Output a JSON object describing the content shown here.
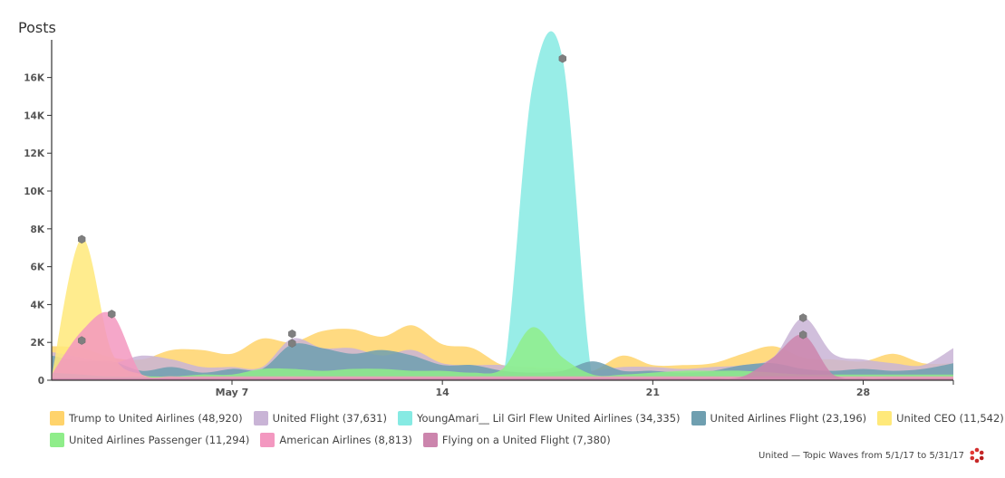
{
  "chart_data": {
    "type": "area",
    "ylabel": "Posts",
    "y_tick_labels": [
      "0",
      "2K",
      "4K",
      "6K",
      "8K",
      "10K",
      "12K",
      "14K",
      "16K"
    ],
    "y_ticks": [
      0,
      2000,
      4000,
      6000,
      8000,
      10000,
      12000,
      14000,
      16000
    ],
    "ylim": [
      0,
      17800
    ],
    "x_tick_labels": [
      "May 7",
      "14",
      "21",
      "28"
    ],
    "x_ticks": [
      "2017-05-07",
      "2017-05-14",
      "2017-05-21",
      "2017-05-28"
    ],
    "x": [
      "2017-05-01",
      "2017-05-02",
      "2017-05-03",
      "2017-05-04",
      "2017-05-05",
      "2017-05-06",
      "2017-05-07",
      "2017-05-08",
      "2017-05-09",
      "2017-05-10",
      "2017-05-11",
      "2017-05-12",
      "2017-05-13",
      "2017-05-14",
      "2017-05-15",
      "2017-05-16",
      "2017-05-17",
      "2017-05-18",
      "2017-05-19",
      "2017-05-20",
      "2017-05-21",
      "2017-05-22",
      "2017-05-23",
      "2017-05-24",
      "2017-05-25",
      "2017-05-26",
      "2017-05-27",
      "2017-05-28",
      "2017-05-29",
      "2017-05-30",
      "2017-05-31"
    ],
    "grid": false,
    "legend_position": "bottom",
    "series": [
      {
        "name": "Trump to United Airlines",
        "count": "48,920",
        "color": "#FFD36B",
        "values": [
          1800,
          1700,
          1200,
          1100,
          1600,
          1600,
          1400,
          2200,
          2000,
          2600,
          2700,
          2300,
          2900,
          1900,
          1700,
          800,
          700,
          600,
          500,
          1300,
          800,
          800,
          900,
          1400,
          1800,
          1200,
          1100,
          1000,
          1400,
          900,
          900
        ]
      },
      {
        "name": "United Flight",
        "count": "37,631",
        "color": "#C9B4D6",
        "values": [
          1500,
          1200,
          900,
          1300,
          1100,
          700,
          700,
          700,
          2200,
          1700,
          1700,
          1300,
          1600,
          900,
          800,
          800,
          600,
          500,
          500,
          700,
          700,
          600,
          700,
          800,
          1200,
          3300,
          1400,
          1100,
          900,
          800,
          1700
        ]
      },
      {
        "name": "YoungAmari__ Lil Girl Flew United Airlines",
        "count": "34,335",
        "color": "#86EAE3",
        "values": [
          0,
          0,
          0,
          0,
          0,
          0,
          0,
          0,
          0,
          0,
          0,
          0,
          0,
          0,
          0,
          0,
          15600,
          17000,
          0,
          0,
          0,
          0,
          0,
          0,
          0,
          0,
          0,
          0,
          0,
          0,
          0
        ]
      },
      {
        "name": "United Airlines Flight",
        "count": "23,196",
        "color": "#6F9FB0",
        "values": [
          1300,
          1000,
          1000,
          500,
          700,
          400,
          600,
          600,
          1900,
          1700,
          1400,
          1600,
          1300,
          800,
          800,
          500,
          400,
          500,
          1000,
          500,
          500,
          400,
          500,
          800,
          900,
          600,
          500,
          600,
          500,
          600,
          900
        ]
      },
      {
        "name": "United CEO",
        "count": "11,542",
        "color": "#FFE97A",
        "values": [
          200,
          7500,
          1500,
          300,
          200,
          100,
          100,
          100,
          200,
          100,
          100,
          100,
          100,
          100,
          100,
          100,
          100,
          100,
          100,
          100,
          100,
          100,
          100,
          100,
          100,
          100,
          100,
          100,
          100,
          100,
          100
        ]
      },
      {
        "name": "United Airlines Passenger",
        "count": "11,294",
        "color": "#8FED8A",
        "values": [
          400,
          300,
          200,
          200,
          200,
          300,
          300,
          600,
          600,
          500,
          600,
          600,
          500,
          500,
          400,
          600,
          2800,
          1200,
          300,
          300,
          400,
          500,
          500,
          500,
          400,
          300,
          300,
          300,
          300,
          300,
          300
        ]
      },
      {
        "name": "American Airlines",
        "count": "8,813",
        "color": "#F398C0",
        "values": [
          300,
          2600,
          3500,
          300,
          200,
          200,
          200,
          200,
          200,
          200,
          200,
          200,
          200,
          200,
          200,
          200,
          200,
          200,
          200,
          200,
          200,
          200,
          200,
          200,
          200,
          200,
          200,
          200,
          200,
          200,
          200
        ]
      },
      {
        "name": "Flying on a United Flight",
        "count": "7,380",
        "color": "#CC85AD",
        "values": [
          100,
          100,
          100,
          100,
          100,
          100,
          100,
          100,
          100,
          100,
          100,
          100,
          100,
          100,
          100,
          100,
          100,
          100,
          100,
          100,
          100,
          100,
          100,
          200,
          1200,
          2400,
          300,
          100,
          100,
          100,
          100
        ]
      }
    ],
    "peak_markers": [
      {
        "date": "2017-05-02",
        "value": 7450
      },
      {
        "date": "2017-05-02",
        "value": 2100
      },
      {
        "date": "2017-05-03",
        "value": 3500
      },
      {
        "date": "2017-05-09",
        "value": 2450
      },
      {
        "date": "2017-05-09",
        "value": 1950
      },
      {
        "date": "2017-05-18",
        "value": 17000
      },
      {
        "date": "2017-05-26",
        "value": 3300
      },
      {
        "date": "2017-05-26",
        "value": 2400
      }
    ]
  },
  "footer": {
    "text": "United — Topic Waves from 5/1/17 to 5/31/17"
  }
}
